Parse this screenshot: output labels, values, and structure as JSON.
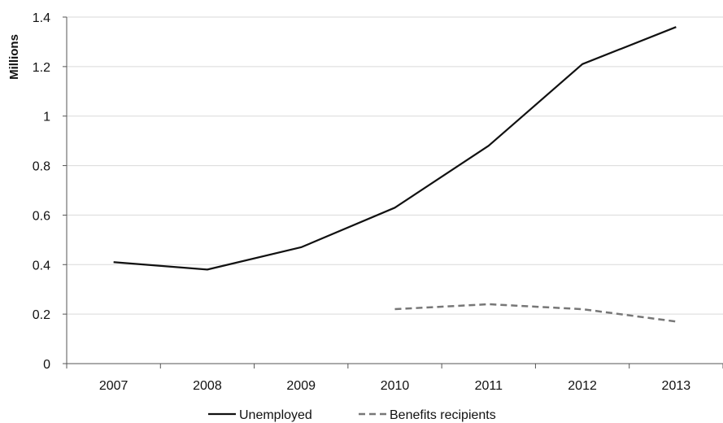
{
  "chart_data": {
    "type": "line",
    "categories": [
      "2007",
      "2008",
      "2009",
      "2010",
      "2011",
      "2012",
      "2013"
    ],
    "series": [
      {
        "name": "Unemployed",
        "values": [
          0.41,
          0.38,
          0.47,
          0.63,
          0.88,
          1.21,
          1.36
        ],
        "color": "#111111",
        "dash": "solid"
      },
      {
        "name": "Benefits recipients",
        "values": [
          null,
          null,
          null,
          0.22,
          0.24,
          0.22,
          0.17
        ],
        "color": "#777777",
        "dash": "dashed"
      }
    ],
    "ylabel": "Millions",
    "xlabel": "",
    "ylim": [
      0,
      1.4
    ],
    "yticks": [
      "0",
      "0.2",
      "0.4",
      "0.6",
      "0.8",
      "1",
      "1.2",
      "1.4"
    ],
    "grid": true,
    "legend_position": "bottom"
  }
}
